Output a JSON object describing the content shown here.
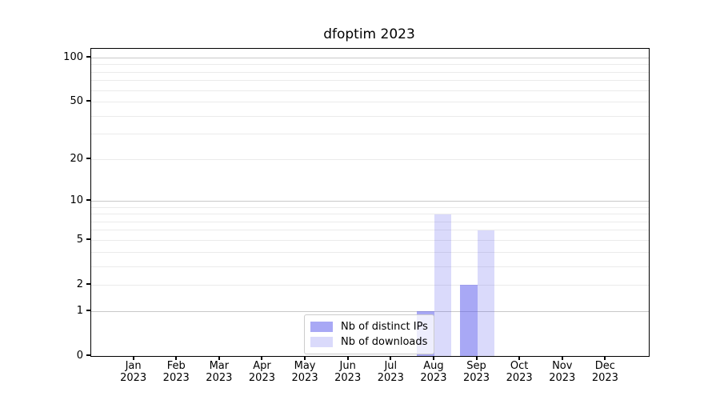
{
  "chart_data": {
    "type": "bar",
    "title": "dfoptim 2023",
    "year_label": "2023",
    "categories": [
      "Jan",
      "Feb",
      "Mar",
      "Apr",
      "May",
      "Jun",
      "Jul",
      "Aug",
      "Sep",
      "Oct",
      "Nov",
      "Dec"
    ],
    "series": [
      {
        "name": "Nb of distinct IPs",
        "color": "rgba(82,82,235,0.5)",
        "values": [
          0,
          0,
          0,
          0,
          0,
          0,
          0,
          1,
          2,
          0,
          0,
          0
        ]
      },
      {
        "name": "Nb of downloads",
        "color": "rgba(82,82,235,0.21)",
        "values": [
          0,
          0,
          0,
          0,
          0,
          0,
          0,
          8,
          6,
          0,
          0,
          0
        ]
      }
    ],
    "yscale": "log1p",
    "ylim": [
      0,
      115
    ],
    "ytick_values": [
      0,
      1,
      2,
      5,
      10,
      20,
      50,
      100
    ],
    "ytick_labels": [
      "0",
      "1",
      "2",
      "5",
      "10",
      "20",
      "50",
      "100"
    ],
    "major_gridline_values": [
      1,
      10,
      100
    ],
    "minor_gridline_values": [
      2,
      3,
      4,
      5,
      6,
      7,
      8,
      9,
      20,
      30,
      40,
      50,
      60,
      70,
      80,
      90
    ],
    "grid_on": true,
    "legend_position": "lower center",
    "xlabel": "",
    "ylabel": ""
  },
  "colors": {
    "major_grid": "#c9c9c9",
    "minor_grid": "#ebebeb",
    "axis": "#000000",
    "legend_border": "#cccccc"
  }
}
